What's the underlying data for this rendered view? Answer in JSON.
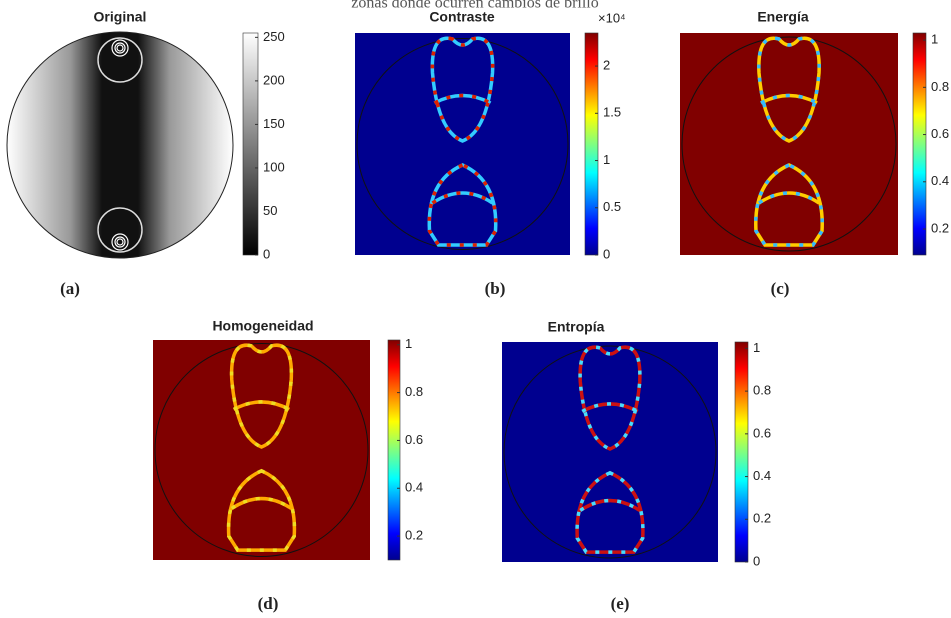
{
  "header": {
    "title": "zonas donde ocurren cambios de brillo"
  },
  "chart_data": [
    {
      "type": "image",
      "title": "Original",
      "caption": "(a)",
      "colormap": "gray",
      "clim": [
        0,
        255
      ],
      "cticks": [
        0,
        50,
        100,
        150,
        200,
        250
      ]
    },
    {
      "type": "image",
      "title": "Contraste",
      "caption": "(b)",
      "colormap": "jet",
      "exponent": "×10⁴",
      "clim": [
        0,
        2.35
      ],
      "cticks": [
        0,
        0.5,
        1,
        1.5,
        2
      ]
    },
    {
      "type": "image",
      "title": "Energía",
      "caption": "(c)",
      "colormap": "jet",
      "clim": [
        0.09,
        1.03
      ],
      "cticks": [
        0.2,
        0.4,
        0.6,
        0.8,
        1
      ]
    },
    {
      "type": "image",
      "title": "Homogeneidad",
      "caption": "(d)",
      "colormap": "jet",
      "clim": [
        0.1,
        1.02
      ],
      "cticks": [
        0.2,
        0.4,
        0.6,
        0.8,
        1
      ]
    },
    {
      "type": "image",
      "title": "Entropía",
      "caption": "(e)",
      "colormap": "jet",
      "clim": [
        0,
        1.03
      ],
      "cticks": [
        0,
        0.2,
        0.4,
        0.6,
        0.8,
        1
      ]
    }
  ]
}
